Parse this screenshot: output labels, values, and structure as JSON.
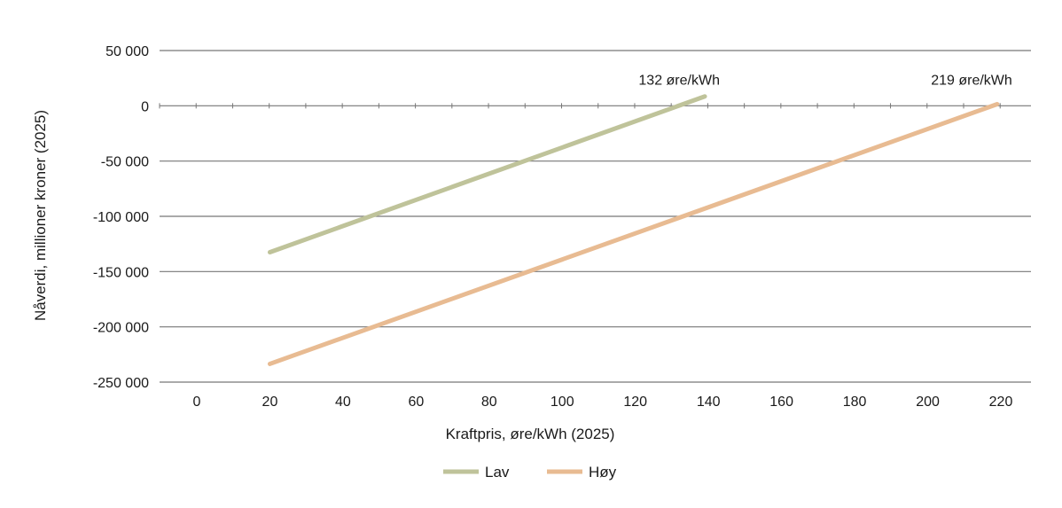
{
  "chart_data": {
    "type": "line",
    "title": "",
    "xlabel": "Kraftpris, øre/kWh (2025)",
    "ylabel": "Nåverdi, millioner kroner (2025)",
    "xlim": [
      -10,
      228
    ],
    "ylim": [
      -250000,
      50000
    ],
    "x_ticks": [
      0,
      20,
      40,
      60,
      80,
      100,
      120,
      140,
      160,
      180,
      200,
      220
    ],
    "x_tick_labels": [
      "0",
      "20",
      "40",
      "60",
      "80",
      "100",
      "120",
      "140",
      "160",
      "180",
      "200",
      "220"
    ],
    "y_ticks": [
      50000,
      0,
      -50000,
      -100000,
      -150000,
      -200000,
      -250000
    ],
    "y_tick_labels": [
      "50 000",
      "0",
      "-50 000",
      "-100 000",
      "-150 000",
      "-200 000",
      "-250 000"
    ],
    "grid": "horizontal",
    "legend_position": "bottom",
    "series": [
      {
        "name": "Lav",
        "color": "#bfc39a",
        "x": [
          20,
          139
        ],
        "y": [
          -132500,
          8500
        ]
      },
      {
        "name": "Høy",
        "color": "#e8bb92",
        "x": [
          20,
          219
        ],
        "y": [
          -233500,
          1500
        ]
      }
    ],
    "annotations": [
      {
        "text": "132 øre/kWh",
        "x": 132,
        "y": 23000
      },
      {
        "text": "219 øre/kWh",
        "x": 212,
        "y": 23000
      }
    ]
  }
}
